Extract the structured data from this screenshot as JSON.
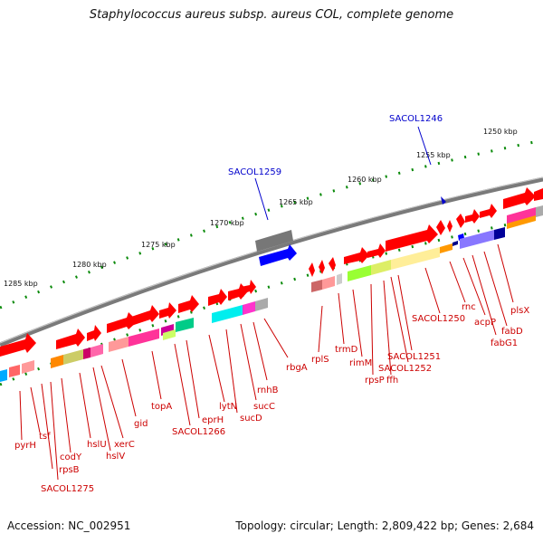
{
  "title": "Staphylococcus aureus subsp. aureus COL, complete genome",
  "footer": {
    "accession": "Accession: NC_002951",
    "topology": "Topology: circular; Length: 2,809,422 bp; Genes: 2,684"
  },
  "scale_labels": [
    "1250 kbp",
    "1255 kbp",
    "1260 kbp",
    "1265 kbp",
    "1270 kbp",
    "1275 kbp",
    "1280 kbp",
    "1285 kbp"
  ],
  "highlighted_genes": [
    "SACOL1246",
    "SACOL1259"
  ],
  "gene_labels": [
    "plsX",
    "fabD",
    "fabG1",
    "acpP",
    "rnc",
    "SACOL1250",
    "SACOL1251",
    "SACOL1252",
    "ffh",
    "rpsP",
    "rimM",
    "trmD",
    "rplS",
    "rbgA",
    "rnhB",
    "sucC",
    "sucD",
    "lytN",
    "eprH",
    "SACOL1266",
    "topA",
    "gid",
    "xerC",
    "hslV",
    "hslU",
    "codY",
    "SACOL1275",
    "rpsB",
    "tsf",
    "pyrH"
  ],
  "colors": {
    "forward_gene": "#ff0000",
    "highlight": "#0000ff",
    "label": "#cc0000",
    "backbone": "#888888",
    "tick": "#008000"
  }
}
